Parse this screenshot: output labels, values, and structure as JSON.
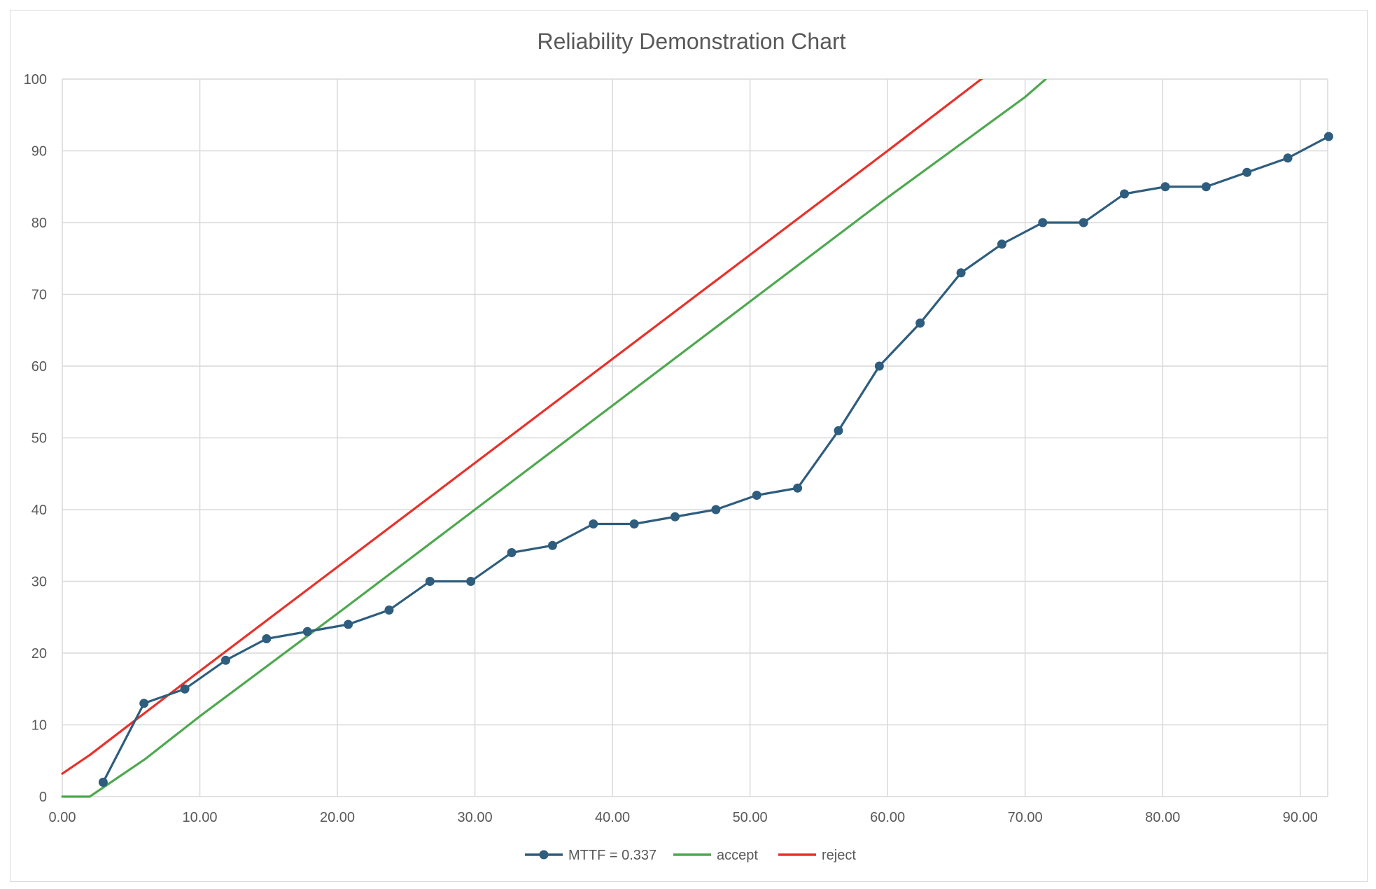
{
  "chart_data": {
    "type": "line",
    "title": "Reliability Demonstration Chart",
    "xlabel": "",
    "ylabel": "",
    "xlim": [
      0,
      92
    ],
    "ylim": [
      0,
      100
    ],
    "x_ticks": [
      "0.00",
      "10.00",
      "20.00",
      "30.00",
      "40.00",
      "50.00",
      "60.00",
      "70.00",
      "80.00",
      "90.00"
    ],
    "y_ticks": [
      "0",
      "10",
      "20",
      "30",
      "40",
      "50",
      "60",
      "70",
      "80",
      "90",
      "100"
    ],
    "grid": true,
    "legend_position": "bottom",
    "series": [
      {
        "name": "MTTF = 0.337",
        "color": "#2e5d7e",
        "markers": true,
        "x": [
          2.97,
          5.94,
          8.91,
          11.88,
          14.85,
          17.82,
          20.79,
          23.76,
          26.73,
          29.7,
          32.67,
          35.64,
          38.61,
          41.58,
          44.55,
          47.52,
          50.49,
          53.46,
          56.43,
          59.4,
          62.37,
          65.34,
          68.31,
          71.28,
          74.25,
          77.22,
          80.19,
          83.16,
          86.13,
          89.1,
          92.07
        ],
        "y": [
          2,
          13,
          15,
          19,
          22,
          23,
          24,
          26,
          30,
          30,
          34,
          35,
          38,
          38,
          39,
          40,
          42,
          43,
          51,
          60,
          66,
          73,
          77,
          80,
          80,
          84,
          85,
          85,
          87,
          89,
          92
        ]
      },
      {
        "name": "accept",
        "color": "#4ea84f",
        "markers": false,
        "x": [
          0,
          2,
          6,
          10,
          20,
          30,
          40,
          50,
          60,
          70,
          71.5
        ],
        "y": [
          0,
          0,
          5.2,
          11.2,
          25.5,
          40,
          54.5,
          69,
          83.5,
          97.5,
          100
        ]
      },
      {
        "name": "reject",
        "color": "#e8312a",
        "markers": false,
        "x": [
          0,
          2,
          5,
          10,
          20,
          30,
          40,
          50,
          60,
          67.5
        ],
        "y": [
          3.2,
          5.8,
          10.2,
          17.5,
          32,
          46.5,
          61,
          75.5,
          90,
          101
        ]
      }
    ]
  }
}
